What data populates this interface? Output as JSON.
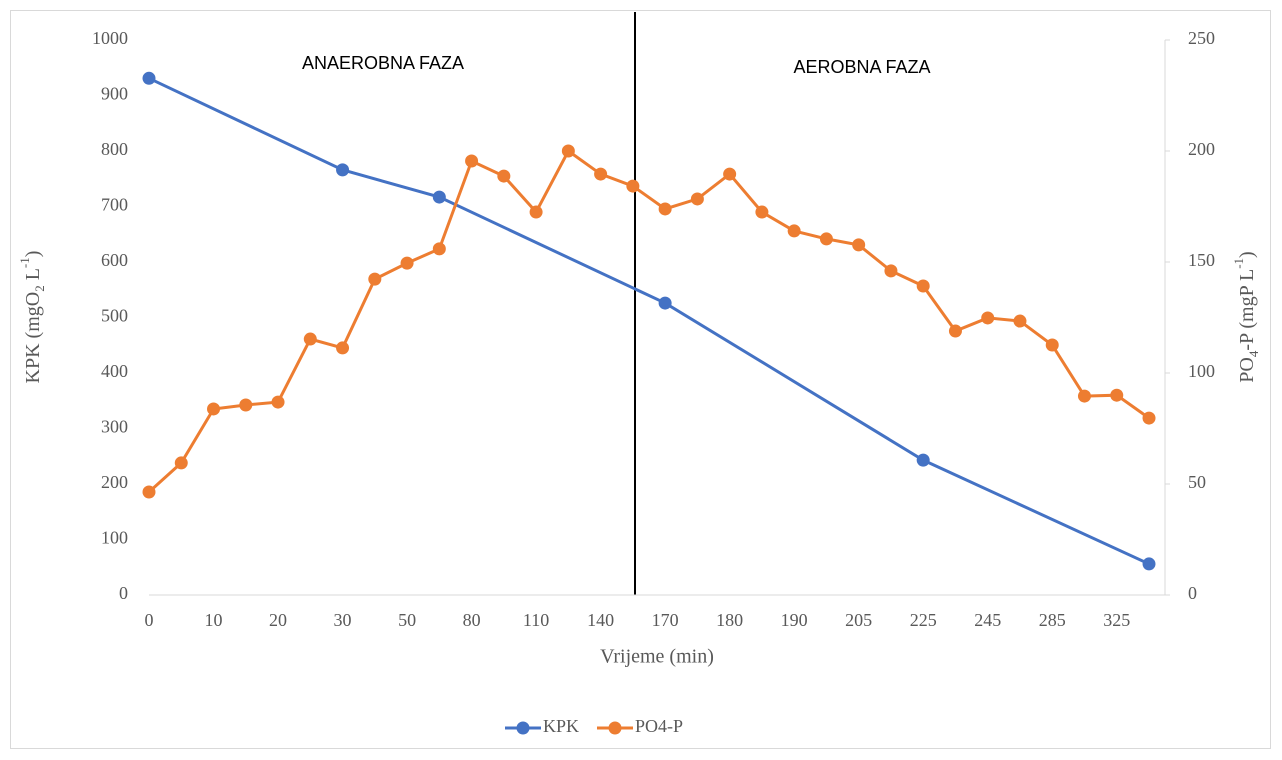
{
  "chart_data": {
    "type": "line",
    "x_label": "Vrijeme (min)",
    "y_label": [
      "KPK (mgO",
      "2",
      " L",
      "-1",
      ")"
    ],
    "y2_label": [
      "PO",
      "4",
      "-P (mgP L",
      "-1",
      ")"
    ],
    "annotations": [
      "ANAEROBNA FAZA",
      "AEROBNA FAZA"
    ],
    "categories": [
      "0",
      null,
      "10",
      null,
      "20",
      null,
      "30",
      null,
      "50",
      null,
      "80",
      null,
      "110",
      null,
      "140",
      null,
      "170",
      null,
      "180",
      null,
      "190",
      null,
      "205",
      null,
      "225",
      null,
      "245",
      null,
      "285",
      null,
      "325",
      null
    ],
    "ylim": [
      0,
      1000
    ],
    "yticks": [
      0,
      100,
      200,
      300,
      400,
      500,
      600,
      700,
      800,
      900,
      1000
    ],
    "y2lim": [
      0,
      250
    ],
    "y2ticks": [
      0,
      50,
      100,
      150,
      200,
      250
    ],
    "span_gaps": true,
    "legend": "bottom",
    "series": [
      {
        "name": "KPK",
        "color": "#4472c4",
        "values": [
          931,
          null,
          null,
          null,
          null,
          null,
          766,
          null,
          null,
          717,
          null,
          null,
          null,
          null,
          null,
          null,
          526,
          null,
          null,
          null,
          null,
          null,
          null,
          null,
          243,
          null,
          null,
          null,
          null,
          null,
          null,
          56
        ]
      },
      {
        "name": "PO4-P",
        "color": "#ed7d31",
        "axis": "y2",
        "values": [
          46.4,
          59.5,
          83.8,
          85.6,
          86.9,
          115.3,
          111.3,
          142.3,
          149.5,
          155.9,
          195.5,
          188.7,
          172.5,
          200,
          189.6,
          184.2,
          173.9,
          178.4,
          189.6,
          172.5,
          164,
          160.4,
          157.7,
          146,
          139.2,
          118.9,
          124.8,
          123.4,
          112.6,
          89.6,
          90,
          79.7
        ]
      }
    ]
  }
}
